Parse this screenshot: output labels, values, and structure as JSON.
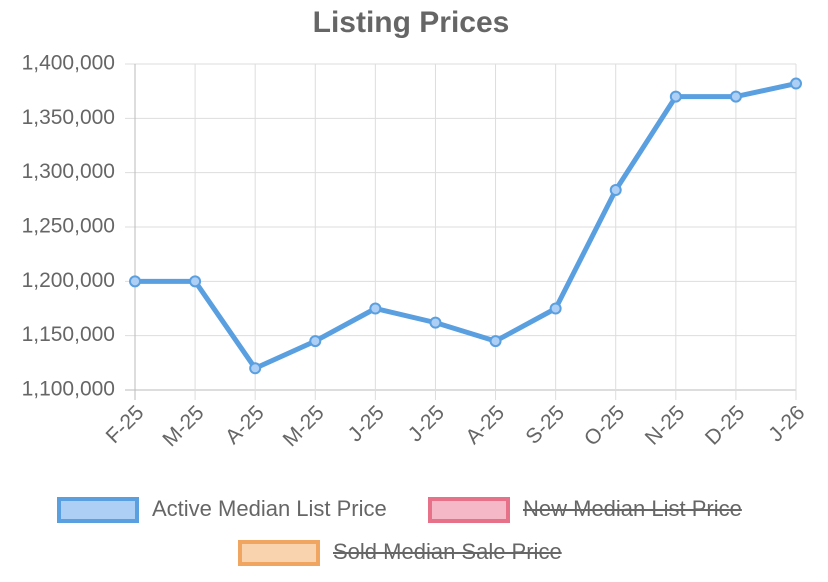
{
  "chart_data": {
    "type": "line",
    "title": "Listing Prices",
    "categories": [
      "F-25",
      "M-25",
      "A-25",
      "M-25",
      "J-25",
      "J-25",
      "A-25",
      "S-25",
      "O-25",
      "N-25",
      "D-25",
      "J-26"
    ],
    "series": [
      {
        "name": "Active Median List Price",
        "color": "#5a9fe0",
        "fill": "#aecff5",
        "hidden": false,
        "values": [
          1200000,
          1200000,
          1120000,
          1145000,
          1175000,
          1162000,
          1145000,
          1175000,
          1284000,
          1370000,
          1370000,
          1382000
        ]
      },
      {
        "name": "New Median List Price",
        "color": "#e8718a",
        "fill": "#f5b8c6",
        "hidden": true,
        "values": [
          null,
          null,
          null,
          null,
          null,
          null,
          null,
          null,
          null,
          null,
          null,
          null
        ]
      },
      {
        "name": "Sold Median Sale Price",
        "color": "#f0a560",
        "fill": "#f9d2ae",
        "hidden": true,
        "values": [
          null,
          null,
          null,
          null,
          null,
          null,
          null,
          null,
          null,
          null,
          null,
          null
        ]
      }
    ],
    "ylim": [
      1100000,
      1400000
    ],
    "yticks": [
      {
        "value": 1100000,
        "label": "1,100,000"
      },
      {
        "value": 1150000,
        "label": "1,150,000"
      },
      {
        "value": 1200000,
        "label": "1,200,000"
      },
      {
        "value": 1250000,
        "label": "1,250,000"
      },
      {
        "value": 1300000,
        "label": "1,300,000"
      },
      {
        "value": 1350000,
        "label": "1,350,000"
      },
      {
        "value": 1400000,
        "label": "1,400,000"
      }
    ],
    "grid": true,
    "legend": "bottom"
  }
}
